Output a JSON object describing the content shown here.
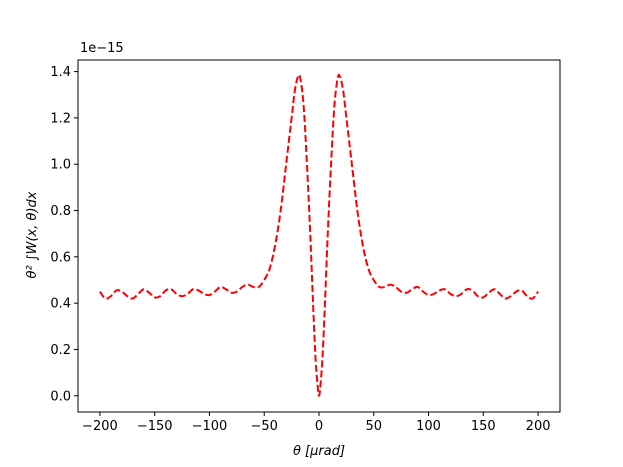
{
  "chart_data": {
    "type": "line",
    "title": "",
    "xlabel": "θ  [μrad]",
    "ylabel": "θ² ∫W(x, θ)dx",
    "offset_text": "1e−15",
    "x_ticks": [
      "−200",
      "−150",
      "−100",
      "−50",
      "0",
      "50",
      "100",
      "150",
      "200"
    ],
    "y_ticks": [
      "0.0",
      "0.2",
      "0.4",
      "0.6",
      "0.8",
      "1.0",
      "1.2",
      "1.4"
    ],
    "xlim": [
      -220,
      220
    ],
    "ylim": [
      -0.07,
      1.45
    ],
    "grid": false,
    "legend": "none",
    "series": [
      {
        "color": "#ff0000",
        "style": "dashed",
        "x": [
          -200,
          -195,
          -190,
          -185,
          -180,
          -175,
          -170,
          -165,
          -160,
          -155,
          -150,
          -145,
          -140,
          -135,
          -130,
          -125,
          -120,
          -115,
          -110,
          -105,
          -100,
          -95,
          -90,
          -85,
          -80,
          -75,
          -70,
          -65,
          -60,
          -55,
          -50,
          -45,
          -40,
          -35,
          -30,
          -25,
          -22,
          -19,
          -17,
          -14,
          -11,
          -8,
          -5,
          -3,
          -1,
          0,
          1,
          3,
          5,
          8,
          11,
          14,
          17,
          19,
          22,
          25,
          30,
          35,
          40,
          45,
          50,
          55,
          60,
          65,
          70,
          75,
          80,
          85,
          90,
          95,
          100,
          105,
          110,
          115,
          120,
          125,
          130,
          135,
          140,
          145,
          150,
          155,
          160,
          165,
          170,
          175,
          180,
          185,
          190,
          195,
          200
        ],
        "y": [
          0.45,
          0.42,
          0.43,
          0.455,
          0.45,
          0.43,
          0.42,
          0.44,
          0.46,
          0.445,
          0.425,
          0.43,
          0.455,
          0.46,
          0.44,
          0.43,
          0.44,
          0.46,
          0.455,
          0.44,
          0.435,
          0.45,
          0.47,
          0.46,
          0.445,
          0.45,
          0.47,
          0.48,
          0.47,
          0.47,
          0.5,
          0.55,
          0.65,
          0.8,
          1.0,
          1.2,
          1.32,
          1.38,
          1.37,
          1.25,
          1.0,
          0.7,
          0.35,
          0.15,
          0.03,
          0.0,
          0.03,
          0.15,
          0.35,
          0.7,
          1.0,
          1.25,
          1.37,
          1.38,
          1.32,
          1.2,
          1.0,
          0.8,
          0.65,
          0.55,
          0.5,
          0.47,
          0.47,
          0.48,
          0.47,
          0.45,
          0.445,
          0.46,
          0.47,
          0.45,
          0.435,
          0.44,
          0.455,
          0.46,
          0.44,
          0.43,
          0.44,
          0.46,
          0.455,
          0.43,
          0.425,
          0.445,
          0.46,
          0.44,
          0.42,
          0.43,
          0.45,
          0.455,
          0.43,
          0.42,
          0.45
        ]
      }
    ]
  }
}
